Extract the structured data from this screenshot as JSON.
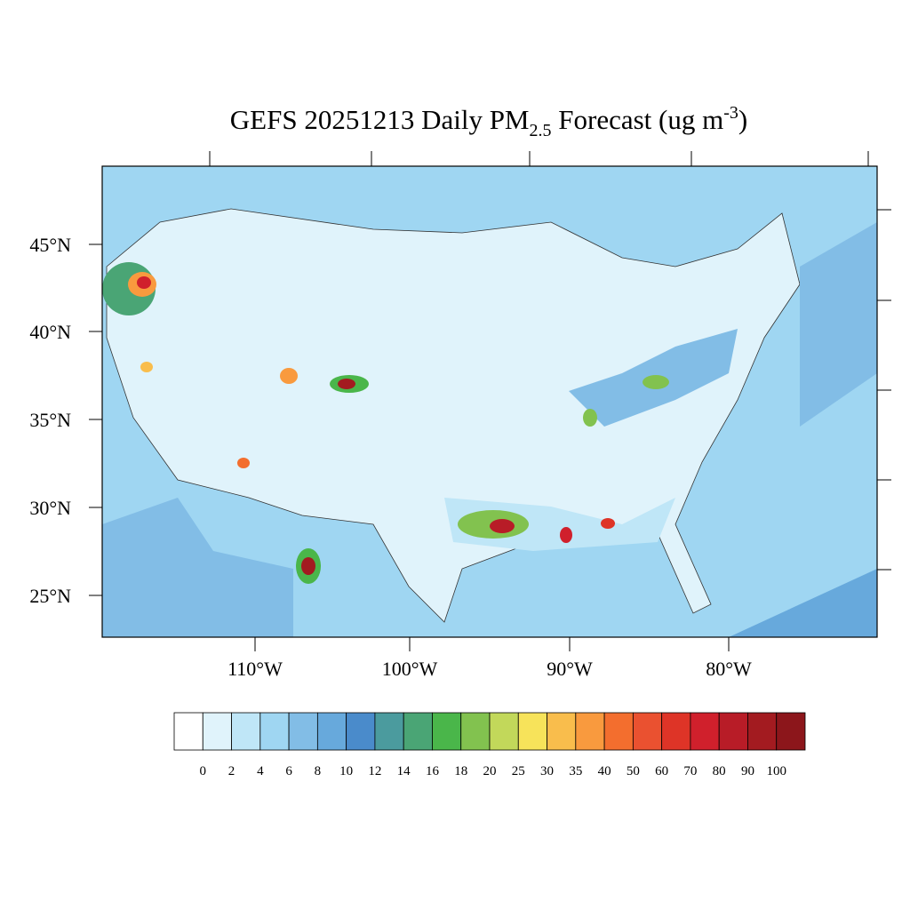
{
  "title": {
    "main": "GEFS 20251213 Daily PM",
    "subscript": "2.5",
    "middle": " Forecast (ug m",
    "superscript": "-3",
    "end": ")"
  },
  "latitude_labels": [
    "45°N",
    "40°N",
    "35°N",
    "30°N",
    "25°N"
  ],
  "longitude_labels": [
    "110°W",
    "100°W",
    "90°W",
    "80°W"
  ],
  "colorbar": {
    "colors": [
      "#ffffff",
      "#e0f3fb",
      "#bfe6f7",
      "#9fd6f2",
      "#82bde6",
      "#67a9dc",
      "#4a8bcb",
      "#4b9b9e",
      "#4aa575",
      "#4ab64a",
      "#82c24f",
      "#c2d85a",
      "#f7e35a",
      "#f9bd4c",
      "#f99a3e",
      "#f36e2e",
      "#ea5130",
      "#de3427",
      "#d0202c",
      "#b81c27",
      "#a31b20",
      "#8c161b"
    ],
    "labels": [
      0,
      2,
      4,
      6,
      8,
      10,
      12,
      14,
      16,
      18,
      20,
      25,
      30,
      35,
      40,
      50,
      60,
      70,
      80,
      90,
      100
    ]
  }
}
